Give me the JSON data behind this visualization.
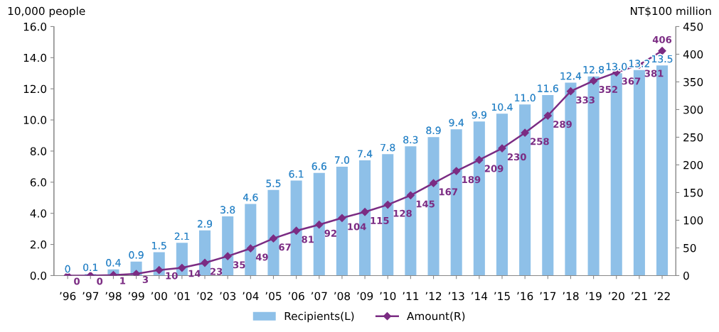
{
  "chart_data": {
    "type": "bar",
    "ylabel": "10,000 people",
    "y2label": "NT$100 million",
    "categories": [
      "’96",
      "’97",
      "’98",
      "’99",
      "’00",
      "’01",
      "’02",
      "’03",
      "’04",
      "’05",
      "’06",
      "’07",
      "’08",
      "’09",
      "’10",
      "’11",
      "’12",
      "’13",
      "’14",
      "’15",
      "’16",
      "’17",
      "’18",
      "’19",
      "’20",
      "’21",
      "’22"
    ],
    "series": [
      {
        "name": "Recipients(L)",
        "color": "#8ec0e8",
        "values": [
          0,
          0.1,
          0.4,
          0.9,
          1.5,
          2.1,
          2.9,
          3.8,
          4.6,
          5.5,
          6.1,
          6.6,
          7.0,
          7.4,
          7.8,
          8.3,
          8.9,
          9.4,
          9.9,
          10.4,
          11.0,
          11.6,
          12.4,
          12.8,
          13.0,
          13.2,
          13.5
        ],
        "value_labels": [
          "0",
          "0.1",
          "0.4",
          "0.9",
          "1.5",
          "2.1",
          "2.9",
          "3.8",
          "4.6",
          "5.5",
          "6.1",
          "6.6",
          "7.0",
          "7.4",
          "7.8",
          "8.3",
          "8.9",
          "9.4",
          "9.9",
          "10.4",
          "11.0",
          "11.6",
          "12.4",
          "12.8",
          "13.0",
          "13.2",
          "13.5"
        ]
      },
      {
        "name": "Amount(R)",
        "type": "line",
        "axis": "y2",
        "color": "#7b2c83",
        "marker": "diamond",
        "values": [
          0,
          0,
          1,
          3,
          10,
          14,
          23,
          35,
          49,
          67,
          81,
          92,
          104,
          115,
          128,
          145,
          167,
          189,
          209,
          230,
          258,
          289,
          333,
          352,
          367,
          381,
          406
        ],
        "value_labels": [
          "0",
          "0",
          "1",
          "3",
          "10",
          "14",
          "23",
          "35",
          "49",
          "67",
          "81",
          "92",
          "104",
          "115",
          "128",
          "145",
          "167",
          "189",
          "209",
          "230",
          "258",
          "289",
          "333",
          "352",
          "367",
          "381",
          "406"
        ]
      }
    ],
    "data_labels": true,
    "ylim": [
      0,
      16
    ],
    "yticks": [
      {
        "value": 0,
        "label": "0.0"
      },
      {
        "value": 2,
        "label": "2.0"
      },
      {
        "value": 4,
        "label": "4.0"
      },
      {
        "value": 6,
        "label": "6.0"
      },
      {
        "value": 8,
        "label": "8.0"
      },
      {
        "value": 10,
        "label": "10.0"
      },
      {
        "value": 12,
        "label": "12.0"
      },
      {
        "value": 14,
        "label": "14.0"
      },
      {
        "value": 16,
        "label": "16.0"
      }
    ],
    "y2lim": [
      0,
      450
    ],
    "y2ticks": [
      0,
      50,
      100,
      150,
      200,
      250,
      300,
      350,
      400,
      450
    ],
    "grid": false,
    "legend": "bottom"
  }
}
